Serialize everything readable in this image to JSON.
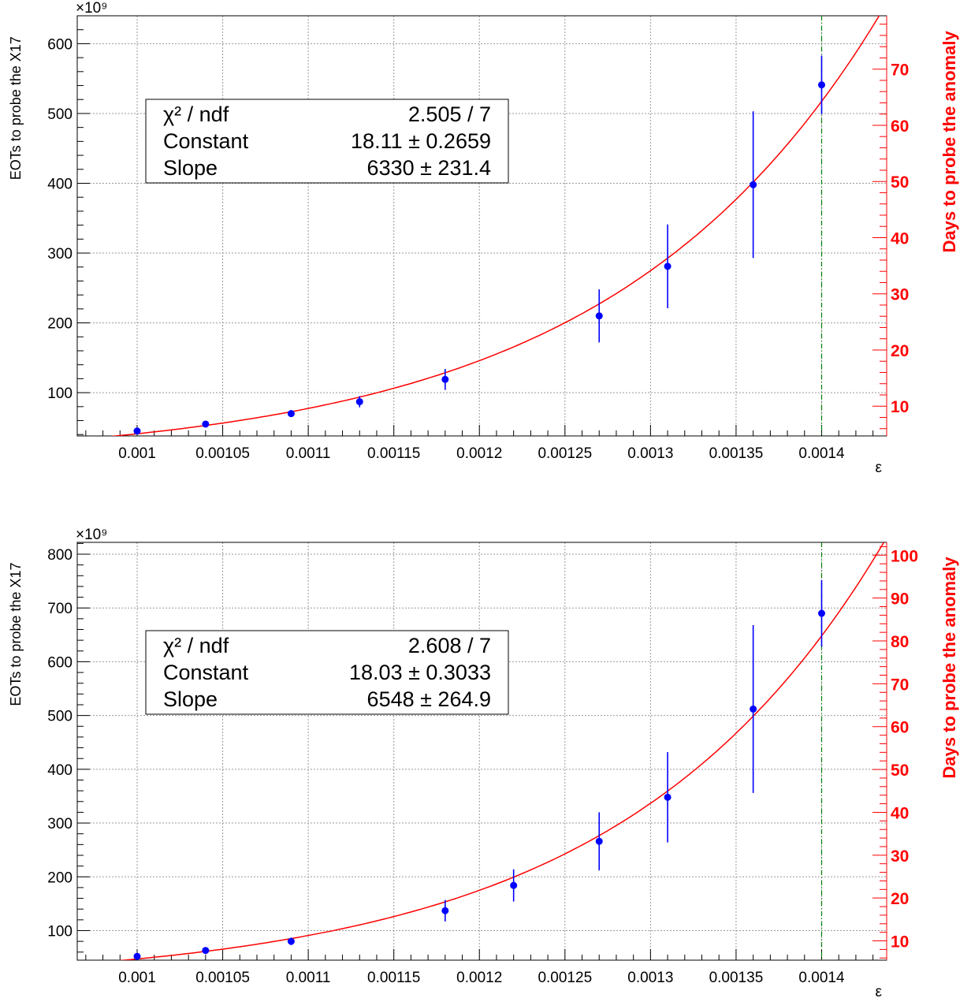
{
  "chart_data": [
    {
      "type": "scatter",
      "title": "",
      "xlabel": "ε",
      "ylabel": "EOTs to probe the X17",
      "y_exponent_label": "×10⁹",
      "y2label": "Days to probe the anomaly",
      "xlim": [
        0.000965,
        0.001438
      ],
      "ylim": [
        38,
        640
      ],
      "y2lim": [
        4.7,
        79.5
      ],
      "xticks": [
        {
          "v": 0.001,
          "label": "0.001"
        },
        {
          "v": 0.00105,
          "label": "0.00105"
        },
        {
          "v": 0.0011,
          "label": "0.0011"
        },
        {
          "v": 0.00115,
          "label": "0.00115"
        },
        {
          "v": 0.0012,
          "label": "0.0012"
        },
        {
          "v": 0.00125,
          "label": "0.00125"
        },
        {
          "v": 0.0013,
          "label": "0.0013"
        },
        {
          "v": 0.00135,
          "label": "0.00135"
        },
        {
          "v": 0.0014,
          "label": "0.0014"
        }
      ],
      "yticks": [
        {
          "v": 100,
          "label": "100"
        },
        {
          "v": 200,
          "label": "200"
        },
        {
          "v": 300,
          "label": "300"
        },
        {
          "v": 400,
          "label": "400"
        },
        {
          "v": 500,
          "label": "500"
        },
        {
          "v": 600,
          "label": "600"
        }
      ],
      "y2ticks": [
        {
          "v": 10,
          "label": "10"
        },
        {
          "v": 20,
          "label": "20"
        },
        {
          "v": 30,
          "label": "30"
        },
        {
          "v": 40,
          "label": "40"
        },
        {
          "v": 50,
          "label": "50"
        },
        {
          "v": 60,
          "label": "60"
        },
        {
          "v": 70,
          "label": "70"
        }
      ],
      "points": [
        {
          "x": 0.001,
          "y": 45,
          "err": 3
        },
        {
          "x": 0.00104,
          "y": 55,
          "err": 4
        },
        {
          "x": 0.00109,
          "y": 70,
          "err": 5
        },
        {
          "x": 0.00113,
          "y": 87,
          "err": 8
        },
        {
          "x": 0.00118,
          "y": 119,
          "err": 15
        },
        {
          "x": 0.00127,
          "y": 210,
          "err": 38
        },
        {
          "x": 0.00131,
          "y": 281,
          "err": 60
        },
        {
          "x": 0.00136,
          "y": 398,
          "err": 105
        },
        {
          "x": 0.0014,
          "y": 541,
          "err": 42
        }
      ],
      "fit": {
        "function": "expo",
        "constant": 18.11,
        "slope": 6330,
        "color": "#ff0000"
      },
      "vline": {
        "x": 0.0014,
        "color": "#008000"
      },
      "stats": {
        "rows": [
          {
            "name": "χ² / ndf",
            "value": "2.505 / 7"
          },
          {
            "name": "Constant",
            "value": "18.11 ± 0.2659"
          },
          {
            "name": "Slope",
            "value": "6330 ± 231.4"
          }
        ]
      },
      "colors": {
        "points": "#0000ff",
        "fit": "#ff0000",
        "right_axis": "#ff0000",
        "vline": "#008000"
      }
    },
    {
      "type": "scatter",
      "title": "",
      "xlabel": "ε",
      "ylabel": "EOTs to probe the X17",
      "y_exponent_label": "×10⁹",
      "y2label": "Days to probe the anomaly",
      "xlim": [
        0.000965,
        0.001438
      ],
      "ylim": [
        45,
        822
      ],
      "y2lim": [
        5.5,
        103
      ],
      "xticks": [
        {
          "v": 0.001,
          "label": "0.001"
        },
        {
          "v": 0.00105,
          "label": "0.00105"
        },
        {
          "v": 0.0011,
          "label": "0.0011"
        },
        {
          "v": 0.00115,
          "label": "0.00115"
        },
        {
          "v": 0.0012,
          "label": "0.0012"
        },
        {
          "v": 0.00125,
          "label": "0.00125"
        },
        {
          "v": 0.0013,
          "label": "0.0013"
        },
        {
          "v": 0.00135,
          "label": "0.00135"
        },
        {
          "v": 0.0014,
          "label": "0.0014"
        }
      ],
      "yticks": [
        {
          "v": 100,
          "label": "100"
        },
        {
          "v": 200,
          "label": "200"
        },
        {
          "v": 300,
          "label": "300"
        },
        {
          "v": 400,
          "label": "400"
        },
        {
          "v": 500,
          "label": "500"
        },
        {
          "v": 600,
          "label": "600"
        },
        {
          "v": 700,
          "label": "700"
        },
        {
          "v": 800,
          "label": "800"
        }
      ],
      "y2ticks": [
        {
          "v": 10,
          "label": "10"
        },
        {
          "v": 20,
          "label": "20"
        },
        {
          "v": 30,
          "label": "30"
        },
        {
          "v": 40,
          "label": "40"
        },
        {
          "v": 50,
          "label": "50"
        },
        {
          "v": 60,
          "label": "60"
        },
        {
          "v": 70,
          "label": "70"
        },
        {
          "v": 80,
          "label": "80"
        },
        {
          "v": 90,
          "label": "90"
        },
        {
          "v": 100,
          "label": "100"
        }
      ],
      "points": [
        {
          "x": 0.001,
          "y": 52,
          "err": 4
        },
        {
          "x": 0.00104,
          "y": 63,
          "err": 5
        },
        {
          "x": 0.00109,
          "y": 80,
          "err": 7
        },
        {
          "x": 0.00118,
          "y": 137,
          "err": 20
        },
        {
          "x": 0.00122,
          "y": 184,
          "err": 30
        },
        {
          "x": 0.00127,
          "y": 266,
          "err": 54
        },
        {
          "x": 0.00131,
          "y": 348,
          "err": 84
        },
        {
          "x": 0.00136,
          "y": 512,
          "err": 156
        },
        {
          "x": 0.0014,
          "y": 690,
          "err": 62
        }
      ],
      "fit": {
        "function": "expo",
        "constant": 18.03,
        "slope": 6548,
        "color": "#ff0000"
      },
      "vline": {
        "x": 0.0014,
        "color": "#008000"
      },
      "stats": {
        "rows": [
          {
            "name": "χ² / ndf",
            "value": "2.608 / 7"
          },
          {
            "name": "Constant",
            "value": "18.03 ± 0.3033"
          },
          {
            "name": "Slope",
            "value": "6548 ± 264.9"
          }
        ]
      },
      "colors": {
        "points": "#0000ff",
        "fit": "#ff0000",
        "right_axis": "#ff0000",
        "vline": "#008000"
      }
    }
  ]
}
